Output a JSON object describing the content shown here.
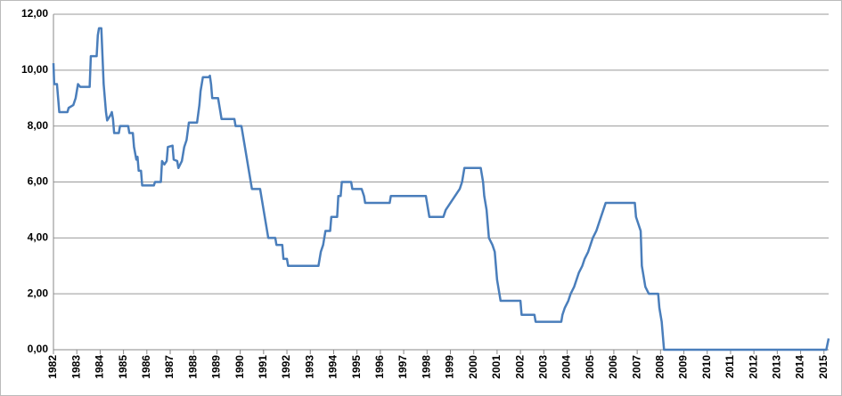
{
  "chart_data": {
    "type": "line",
    "x": [
      1982.0,
      1982.03,
      1982.15,
      1982.2,
      1982.25,
      1982.6,
      1982.65,
      1982.85,
      1982.95,
      1983.05,
      1983.15,
      1983.55,
      1983.6,
      1983.85,
      1983.9,
      1983.95,
      1984.05,
      1984.1,
      1984.15,
      1984.25,
      1984.3,
      1984.45,
      1984.5,
      1984.55,
      1984.6,
      1984.8,
      1984.85,
      1985.2,
      1985.25,
      1985.4,
      1985.45,
      1985.55,
      1985.6,
      1985.65,
      1985.75,
      1985.8,
      1986.3,
      1986.35,
      1986.6,
      1986.65,
      1986.75,
      1986.85,
      1986.9,
      1987.1,
      1987.15,
      1987.3,
      1987.35,
      1987.5,
      1987.6,
      1987.7,
      1987.8,
      1988.15,
      1988.25,
      1988.3,
      1988.4,
      1988.65,
      1988.7,
      1988.75,
      1988.8,
      1989.05,
      1989.15,
      1989.2,
      1989.75,
      1989.8,
      1990.05,
      1990.15,
      1990.25,
      1990.35,
      1990.45,
      1990.5,
      1990.85,
      1990.95,
      1991.05,
      1991.2,
      1991.5,
      1991.55,
      1991.8,
      1991.85,
      1992.0,
      1992.05,
      1993.35,
      1993.45,
      1993.55,
      1993.65,
      1993.85,
      1993.9,
      1994.15,
      1994.2,
      1994.3,
      1994.35,
      1994.75,
      1994.8,
      1995.2,
      1995.3,
      1995.35,
      1996.4,
      1996.45,
      1997.95,
      1998.05,
      1998.1,
      1998.7,
      1998.8,
      1999.0,
      1999.2,
      1999.4,
      1999.5,
      1999.6,
      2000.3,
      2000.4,
      2000.45,
      2000.55,
      2000.65,
      2000.8,
      2000.9,
      2000.95,
      2001.0,
      2001.1,
      2001.15,
      2002.0,
      2002.05,
      2002.6,
      2002.65,
      2003.75,
      2003.8,
      2003.9,
      2004.05,
      2004.15,
      2004.3,
      2004.4,
      2004.5,
      2004.65,
      2004.75,
      2004.9,
      2005.0,
      2005.1,
      2005.25,
      2005.35,
      2005.45,
      2005.55,
      2005.65,
      2006.9,
      2006.95,
      2007.05,
      2007.15,
      2007.2,
      2007.35,
      2007.5,
      2007.9,
      2007.95,
      2008.05,
      2008.15,
      2015.1,
      2015.2
    ],
    "series": [
      {
        "color": "#4a7ebb",
        "values": [
          10.25,
          9.5,
          9.5,
          9.0,
          8.5,
          8.5,
          8.65,
          8.75,
          9.0,
          9.5,
          9.4,
          9.4,
          10.5,
          10.5,
          11.25,
          11.5,
          11.5,
          10.5,
          9.5,
          8.5,
          8.2,
          8.4,
          8.5,
          8.25,
          7.75,
          7.75,
          8.0,
          8.0,
          7.75,
          7.75,
          7.25,
          6.8,
          6.9,
          6.4,
          6.4,
          5.875,
          5.875,
          6.0,
          6.0,
          6.75,
          6.625,
          6.75,
          7.25,
          7.3,
          6.8,
          6.75,
          6.5,
          6.75,
          7.25,
          7.5,
          8.125,
          8.125,
          8.75,
          9.25,
          9.75,
          9.75,
          9.8,
          9.5,
          9.0,
          9.0,
          8.5,
          8.25,
          8.25,
          8.0,
          8.0,
          7.5,
          7.0,
          6.5,
          6.0,
          5.75,
          5.75,
          5.25,
          4.75,
          4.0,
          4.0,
          3.75,
          3.75,
          3.25,
          3.25,
          3.0,
          3.0,
          3.5,
          3.75,
          4.25,
          4.25,
          4.75,
          4.75,
          5.5,
          5.5,
          6.0,
          6.0,
          5.75,
          5.75,
          5.5,
          5.25,
          5.25,
          5.5,
          5.5,
          5.0,
          4.75,
          4.75,
          5.0,
          5.25,
          5.5,
          5.75,
          6.0,
          6.5,
          6.5,
          6.0,
          5.5,
          5.0,
          4.0,
          3.75,
          3.5,
          3.0,
          2.5,
          2.0,
          1.75,
          1.75,
          1.25,
          1.25,
          1.0,
          1.0,
          1.25,
          1.5,
          1.75,
          2.0,
          2.25,
          2.5,
          2.75,
          3.0,
          3.25,
          3.5,
          3.75,
          4.0,
          4.25,
          4.5,
          4.75,
          5.0,
          5.25,
          5.25,
          4.75,
          4.5,
          4.25,
          3.0,
          2.25,
          2.0,
          2.0,
          1.5,
          1.0,
          0.0,
          0.0,
          0.4
        ]
      }
    ],
    "xlim": [
      1982,
      2015.2
    ],
    "xticks": [
      1982,
      1983,
      1984,
      1985,
      1986,
      1987,
      1988,
      1989,
      1990,
      1991,
      1992,
      1993,
      1994,
      1995,
      1996,
      1997,
      1998,
      1999,
      2000,
      2001,
      2002,
      2003,
      2004,
      2005,
      2006,
      2007,
      2008,
      2009,
      2010,
      2011,
      2012,
      2013,
      2014,
      2015
    ],
    "ylim": [
      0,
      12
    ],
    "yticks": [
      {
        "value": 0,
        "label": "0,00"
      },
      {
        "value": 2,
        "label": "2,00"
      },
      {
        "value": 4,
        "label": "4,00"
      },
      {
        "value": 6,
        "label": "6,00"
      },
      {
        "value": 8,
        "label": "8,00"
      },
      {
        "value": 10,
        "label": "10,00"
      },
      {
        "value": 12,
        "label": "12,00"
      }
    ],
    "grid": true
  }
}
